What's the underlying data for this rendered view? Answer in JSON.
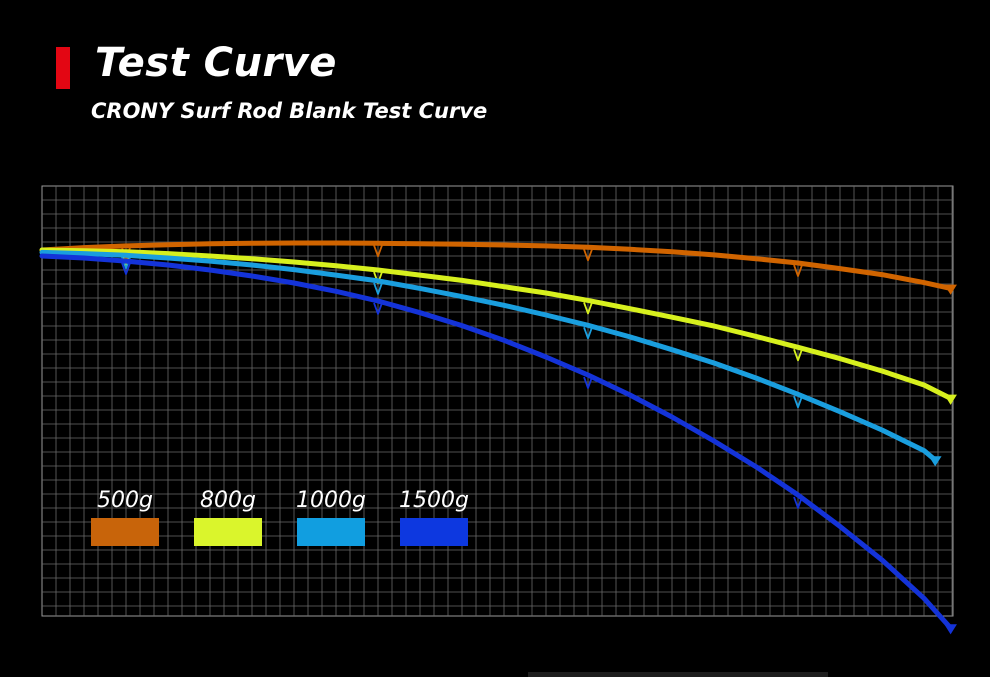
{
  "header": {
    "title": "Test Curve",
    "subtitle": "CRONY Surf Rod Blank Test Curve",
    "accent_color": "#e30613"
  },
  "chart_data": {
    "type": "line",
    "title": "Test Curve",
    "subtitle": "CRONY Surf Rod Blank Test Curve",
    "xlabel": "",
    "ylabel": "",
    "grid": true,
    "legend_position": "bottom-left",
    "series": [
      {
        "name": "500g",
        "color": "#d06400",
        "x": [
          0,
          3,
          6,
          9,
          12,
          15,
          18,
          21,
          24,
          27,
          30,
          33,
          36,
          39,
          42,
          45,
          48,
          51,
          54,
          57,
          60,
          63,
          64.9
        ],
        "y": [
          0,
          0.17,
          0.29,
          0.38,
          0.45,
          0.48,
          0.5,
          0.5,
          0.48,
          0.45,
          0.41,
          0.36,
          0.29,
          0.19,
          0.05,
          -0.12,
          -0.35,
          -0.62,
          -0.93,
          -1.33,
          -1.76,
          -2.33,
          -2.74
        ]
      },
      {
        "name": "800g",
        "color": "#d7f01e",
        "x": [
          0,
          3,
          6,
          9,
          12,
          15,
          18,
          21,
          24,
          27,
          30,
          33,
          36,
          39,
          42,
          45,
          48,
          51,
          54,
          57,
          60,
          63,
          64.9
        ],
        "y": [
          0,
          -0.05,
          -0.12,
          -0.26,
          -0.43,
          -0.62,
          -0.86,
          -1.12,
          -1.43,
          -1.79,
          -2.17,
          -2.62,
          -3.07,
          -3.6,
          -4.19,
          -4.8,
          -5.43,
          -6.17,
          -6.95,
          -7.76,
          -8.64,
          -9.64,
          -10.6
        ]
      },
      {
        "name": "1000g",
        "color": "#1a9ede",
        "x": [
          0,
          3,
          6,
          9,
          12,
          15,
          18,
          21,
          24,
          27,
          30,
          33,
          36,
          39,
          42,
          45,
          48,
          51,
          54,
          57,
          60,
          63,
          63.8
        ],
        "y": [
          -0.17,
          -0.26,
          -0.38,
          -0.57,
          -0.79,
          -1.07,
          -1.4,
          -1.79,
          -2.21,
          -2.74,
          -3.33,
          -3.95,
          -4.64,
          -5.38,
          -6.21,
          -7.12,
          -8.07,
          -9.14,
          -10.31,
          -11.55,
          -12.86,
          -14.33,
          -15.0
        ]
      },
      {
        "name": "1500g",
        "color": "#1433d8",
        "x": [
          0,
          3,
          6,
          9,
          12,
          15,
          18,
          21,
          24,
          27,
          30,
          33,
          36,
          39,
          42,
          45,
          48,
          51,
          54,
          57,
          60,
          63,
          64.9
        ],
        "y": [
          -0.43,
          -0.57,
          -0.79,
          -1.07,
          -1.43,
          -1.86,
          -2.36,
          -2.95,
          -3.64,
          -4.48,
          -5.4,
          -6.45,
          -7.64,
          -8.93,
          -10.36,
          -11.93,
          -13.64,
          -15.48,
          -17.5,
          -19.74,
          -22.14,
          -24.88,
          -27.0
        ]
      }
    ]
  },
  "legend": [
    {
      "label": "500g",
      "color": "#c8640a"
    },
    {
      "label": "800g",
      "color": "#daf52c"
    },
    {
      "label": "1000g",
      "color": "#119ee0"
    },
    {
      "label": "1500g",
      "color": "#0d38e0"
    }
  ]
}
